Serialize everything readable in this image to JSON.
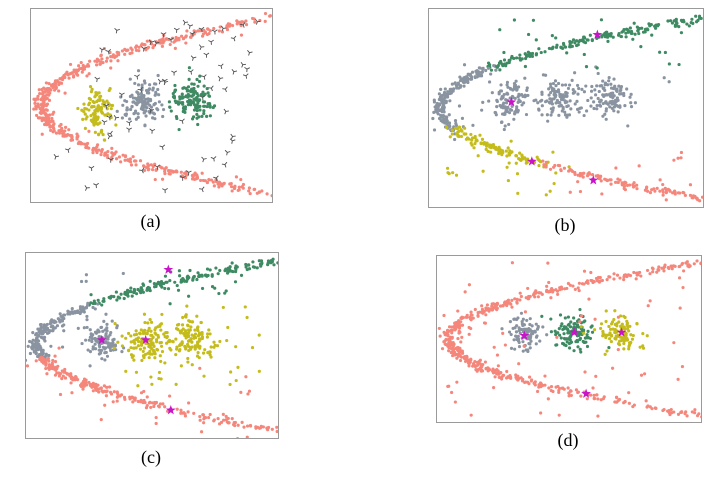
{
  "chart_data": {
    "type": "scatter",
    "description": "Four panel comparison of clustering results on a 2D dataset consisting of a noisy right-opening parabola band, three Gaussian blobs inside it, and background noise points. Panel (a) shows the raw data with noise drawn as Y-shaped markers; panels (b), (c), (d) show alternative cluster assignments with magenta star markers at cluster centers.",
    "grid": false,
    "axes_visible": false,
    "legend": null,
    "palette": {
      "salmon": "#F5867B",
      "gray": "#8A94A1",
      "yellow": "#C4BC1A",
      "green": "#3E8A62",
      "noise_dark": "#4D4D4D"
    },
    "star_color": "#C913C9",
    "parabola": {
      "vertex_x": 0.04,
      "coeff": 4.6,
      "jitter": 0.013
    },
    "panels": [
      {
        "id": "a",
        "label": "(a)",
        "series": [
          {
            "kind": "parabola",
            "yRange": [
              0.03,
              0.97
            ],
            "count": 540,
            "color": "#F5867B"
          },
          {
            "kind": "cluster",
            "center": [
              0.27,
              0.53
            ],
            "sd": [
              0.034,
              0.05
            ],
            "count": 110,
            "color": "#C4BC1A"
          },
          {
            "kind": "cluster",
            "center": [
              0.465,
              0.49
            ],
            "sd": [
              0.04,
              0.052
            ],
            "count": 130,
            "color": "#8A94A1"
          },
          {
            "kind": "cluster",
            "center": [
              0.665,
              0.47
            ],
            "sd": [
              0.046,
              0.055
            ],
            "count": 135,
            "color": "#3E8A62"
          },
          {
            "kind": "noise",
            "marker": "tri",
            "xRange": [
              0.22,
              0.95
            ],
            "yRange": [
              0.06,
              0.42
            ],
            "count": 40,
            "color": "#4D4D4D"
          },
          {
            "kind": "noise",
            "marker": "tri",
            "xRange": [
              0.28,
              0.82
            ],
            "yRange": [
              0.44,
              0.6
            ],
            "count": 10,
            "color": "#4D4D4D"
          },
          {
            "kind": "noise",
            "marker": "tri",
            "xRange": [
              0.08,
              0.85
            ],
            "yRange": [
              0.62,
              0.94
            ],
            "count": 24,
            "color": "#4D4D4D"
          }
        ],
        "stars": []
      },
      {
        "id": "b",
        "label": "(b)",
        "series": [
          {
            "kind": "parabola",
            "yRange": [
              0.03,
              0.3
            ],
            "count": 190,
            "color": "#3E8A62"
          },
          {
            "kind": "parabola",
            "yRange": [
              0.3,
              0.61
            ],
            "count": 215,
            "color": "#8A94A1"
          },
          {
            "kind": "parabola",
            "yRange": [
              0.61,
              0.79
            ],
            "count": 110,
            "color": "#C4BC1A"
          },
          {
            "kind": "parabola",
            "yRange": [
              0.79,
              0.97
            ],
            "count": 120,
            "color": "#F5867B"
          },
          {
            "kind": "cluster",
            "center": [
              0.3,
              0.47
            ],
            "sd": [
              0.035,
              0.05
            ],
            "count": 105,
            "color": "#8A94A1"
          },
          {
            "kind": "cluster",
            "center": [
              0.48,
              0.45
            ],
            "sd": [
              0.04,
              0.05
            ],
            "count": 115,
            "color": "#8A94A1"
          },
          {
            "kind": "cluster",
            "center": [
              0.66,
              0.44
            ],
            "sd": [
              0.04,
              0.05
            ],
            "count": 105,
            "color": "#8A94A1"
          },
          {
            "kind": "noise",
            "xRange": [
              0.25,
              0.92
            ],
            "yRange": [
              0.05,
              0.3
            ],
            "count": 22,
            "color": "#3E8A62"
          },
          {
            "kind": "noise",
            "xRange": [
              0.2,
              0.92
            ],
            "yRange": [
              0.32,
              0.6
            ],
            "count": 16,
            "color": "#8A94A1"
          },
          {
            "kind": "noise",
            "xRange": [
              0.05,
              0.55
            ],
            "yRange": [
              0.63,
              0.95
            ],
            "count": 20,
            "color": "#C4BC1A"
          },
          {
            "kind": "noise",
            "xRange": [
              0.5,
              0.97
            ],
            "yRange": [
              0.72,
              0.97
            ],
            "count": 16,
            "color": "#F5867B"
          }
        ],
        "stars": [
          [
            0.615,
            0.13
          ],
          [
            0.3,
            0.47
          ],
          [
            0.375,
            0.77
          ],
          [
            0.6,
            0.865
          ]
        ]
      },
      {
        "id": "c",
        "label": "(c)",
        "series": [
          {
            "kind": "parabola",
            "yRange": [
              0.03,
              0.28
            ],
            "count": 180,
            "color": "#3E8A62"
          },
          {
            "kind": "parabola",
            "yRange": [
              0.28,
              0.57
            ],
            "count": 205,
            "color": "#8A94A1"
          },
          {
            "kind": "parabola",
            "yRange": [
              0.57,
              0.97
            ],
            "count": 235,
            "color": "#F5867B"
          },
          {
            "kind": "cluster",
            "center": [
              0.3,
              0.47
            ],
            "sd": [
              0.034,
              0.05
            ],
            "count": 100,
            "color": "#8A94A1"
          },
          {
            "kind": "cluster",
            "center": [
              0.475,
              0.47
            ],
            "sd": [
              0.042,
              0.055
            ],
            "count": 115,
            "color": "#C4BC1A"
          },
          {
            "kind": "cluster",
            "center": [
              0.655,
              0.46
            ],
            "sd": [
              0.045,
              0.055
            ],
            "count": 115,
            "color": "#C4BC1A"
          },
          {
            "kind": "noise",
            "xRange": [
              0.3,
              0.9
            ],
            "yRange": [
              0.04,
              0.28
            ],
            "count": 18,
            "color": "#3E8A62"
          },
          {
            "kind": "noise",
            "xRange": [
              0.06,
              0.42
            ],
            "yRange": [
              0.1,
              0.44
            ],
            "count": 13,
            "color": "#8A94A1"
          },
          {
            "kind": "noise",
            "xRange": [
              0.33,
              0.94
            ],
            "yRange": [
              0.26,
              0.74
            ],
            "count": 40,
            "color": "#C4BC1A"
          },
          {
            "kind": "noise",
            "xRange": [
              0.12,
              0.9
            ],
            "yRange": [
              0.62,
              0.95
            ],
            "count": 18,
            "color": "#F5867B"
          }
        ],
        "stars": [
          [
            0.565,
            0.09
          ],
          [
            0.3,
            0.47
          ],
          [
            0.475,
            0.47
          ],
          [
            0.575,
            0.85
          ]
        ]
      },
      {
        "id": "d",
        "label": "(d)",
        "series": [
          {
            "kind": "parabola",
            "yRange": [
              0.03,
              0.97
            ],
            "count": 540,
            "color": "#F5867B"
          },
          {
            "kind": "cluster",
            "center": [
              0.33,
              0.48
            ],
            "sd": [
              0.032,
              0.05
            ],
            "count": 95,
            "color": "#8A94A1"
          },
          {
            "kind": "cluster",
            "center": [
              0.52,
              0.46
            ],
            "sd": [
              0.04,
              0.05
            ],
            "count": 115,
            "color": "#3E8A62"
          },
          {
            "kind": "cluster",
            "center": [
              0.7,
              0.46
            ],
            "sd": [
              0.04,
              0.05
            ],
            "count": 105,
            "color": "#C4BC1A"
          },
          {
            "kind": "noise",
            "xRange": [
              0.03,
              0.97
            ],
            "yRange": [
              0.03,
              0.97
            ],
            "count": 55,
            "color": "#F5867B"
          }
        ],
        "stars": [
          [
            0.33,
            0.48
          ],
          [
            0.52,
            0.46
          ],
          [
            0.7,
            0.46
          ],
          [
            0.565,
            0.83
          ]
        ]
      }
    ]
  }
}
